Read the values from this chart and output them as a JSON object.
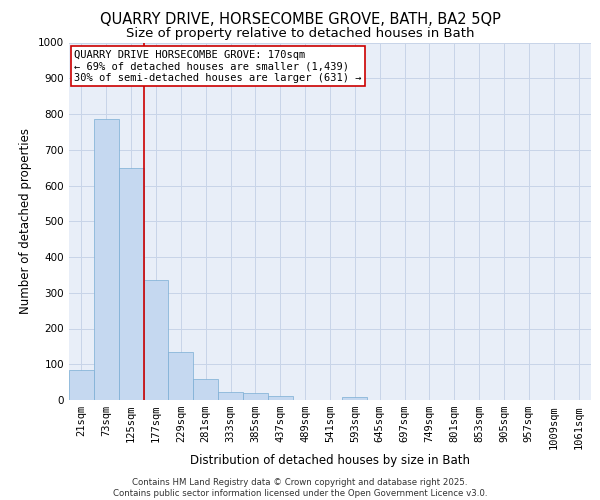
{
  "title_line1": "QUARRY DRIVE, HORSECOMBE GROVE, BATH, BA2 5QP",
  "title_line2": "Size of property relative to detached houses in Bath",
  "xlabel": "Distribution of detached houses by size in Bath",
  "ylabel": "Number of detached properties",
  "bar_color": "#c5d8f0",
  "bar_edge_color": "#7aadd4",
  "grid_color": "#c8d4e8",
  "background_color": "#e8eef8",
  "categories": [
    "21sqm",
    "73sqm",
    "125sqm",
    "177sqm",
    "229sqm",
    "281sqm",
    "333sqm",
    "385sqm",
    "437sqm",
    "489sqm",
    "541sqm",
    "593sqm",
    "645sqm",
    "697sqm",
    "749sqm",
    "801sqm",
    "853sqm",
    "905sqm",
    "957sqm",
    "1009sqm",
    "1061sqm"
  ],
  "values": [
    83,
    785,
    648,
    335,
    133,
    58,
    23,
    19,
    10,
    0,
    0,
    8,
    0,
    0,
    0,
    0,
    0,
    0,
    0,
    0,
    0
  ],
  "ylim": [
    0,
    1000
  ],
  "yticks": [
    0,
    100,
    200,
    300,
    400,
    500,
    600,
    700,
    800,
    900,
    1000
  ],
  "property_line_x": 2.5,
  "annotation_line1": "QUARRY DRIVE HORSECOMBE GROVE: 170sqm",
  "annotation_line2": "← 69% of detached houses are smaller (1,439)",
  "annotation_line3": "30% of semi-detached houses are larger (631) →",
  "annotation_box_color": "#ffffff",
  "annotation_border_color": "#cc0000",
  "footnote": "Contains HM Land Registry data © Crown copyright and database right 2025.\nContains public sector information licensed under the Open Government Licence v3.0.",
  "red_line_color": "#cc0000",
  "title_fontsize": 10.5,
  "subtitle_fontsize": 9.5,
  "tick_fontsize": 7.5,
  "ylabel_fontsize": 8.5,
  "xlabel_fontsize": 8.5,
  "annot_fontsize": 7.5
}
